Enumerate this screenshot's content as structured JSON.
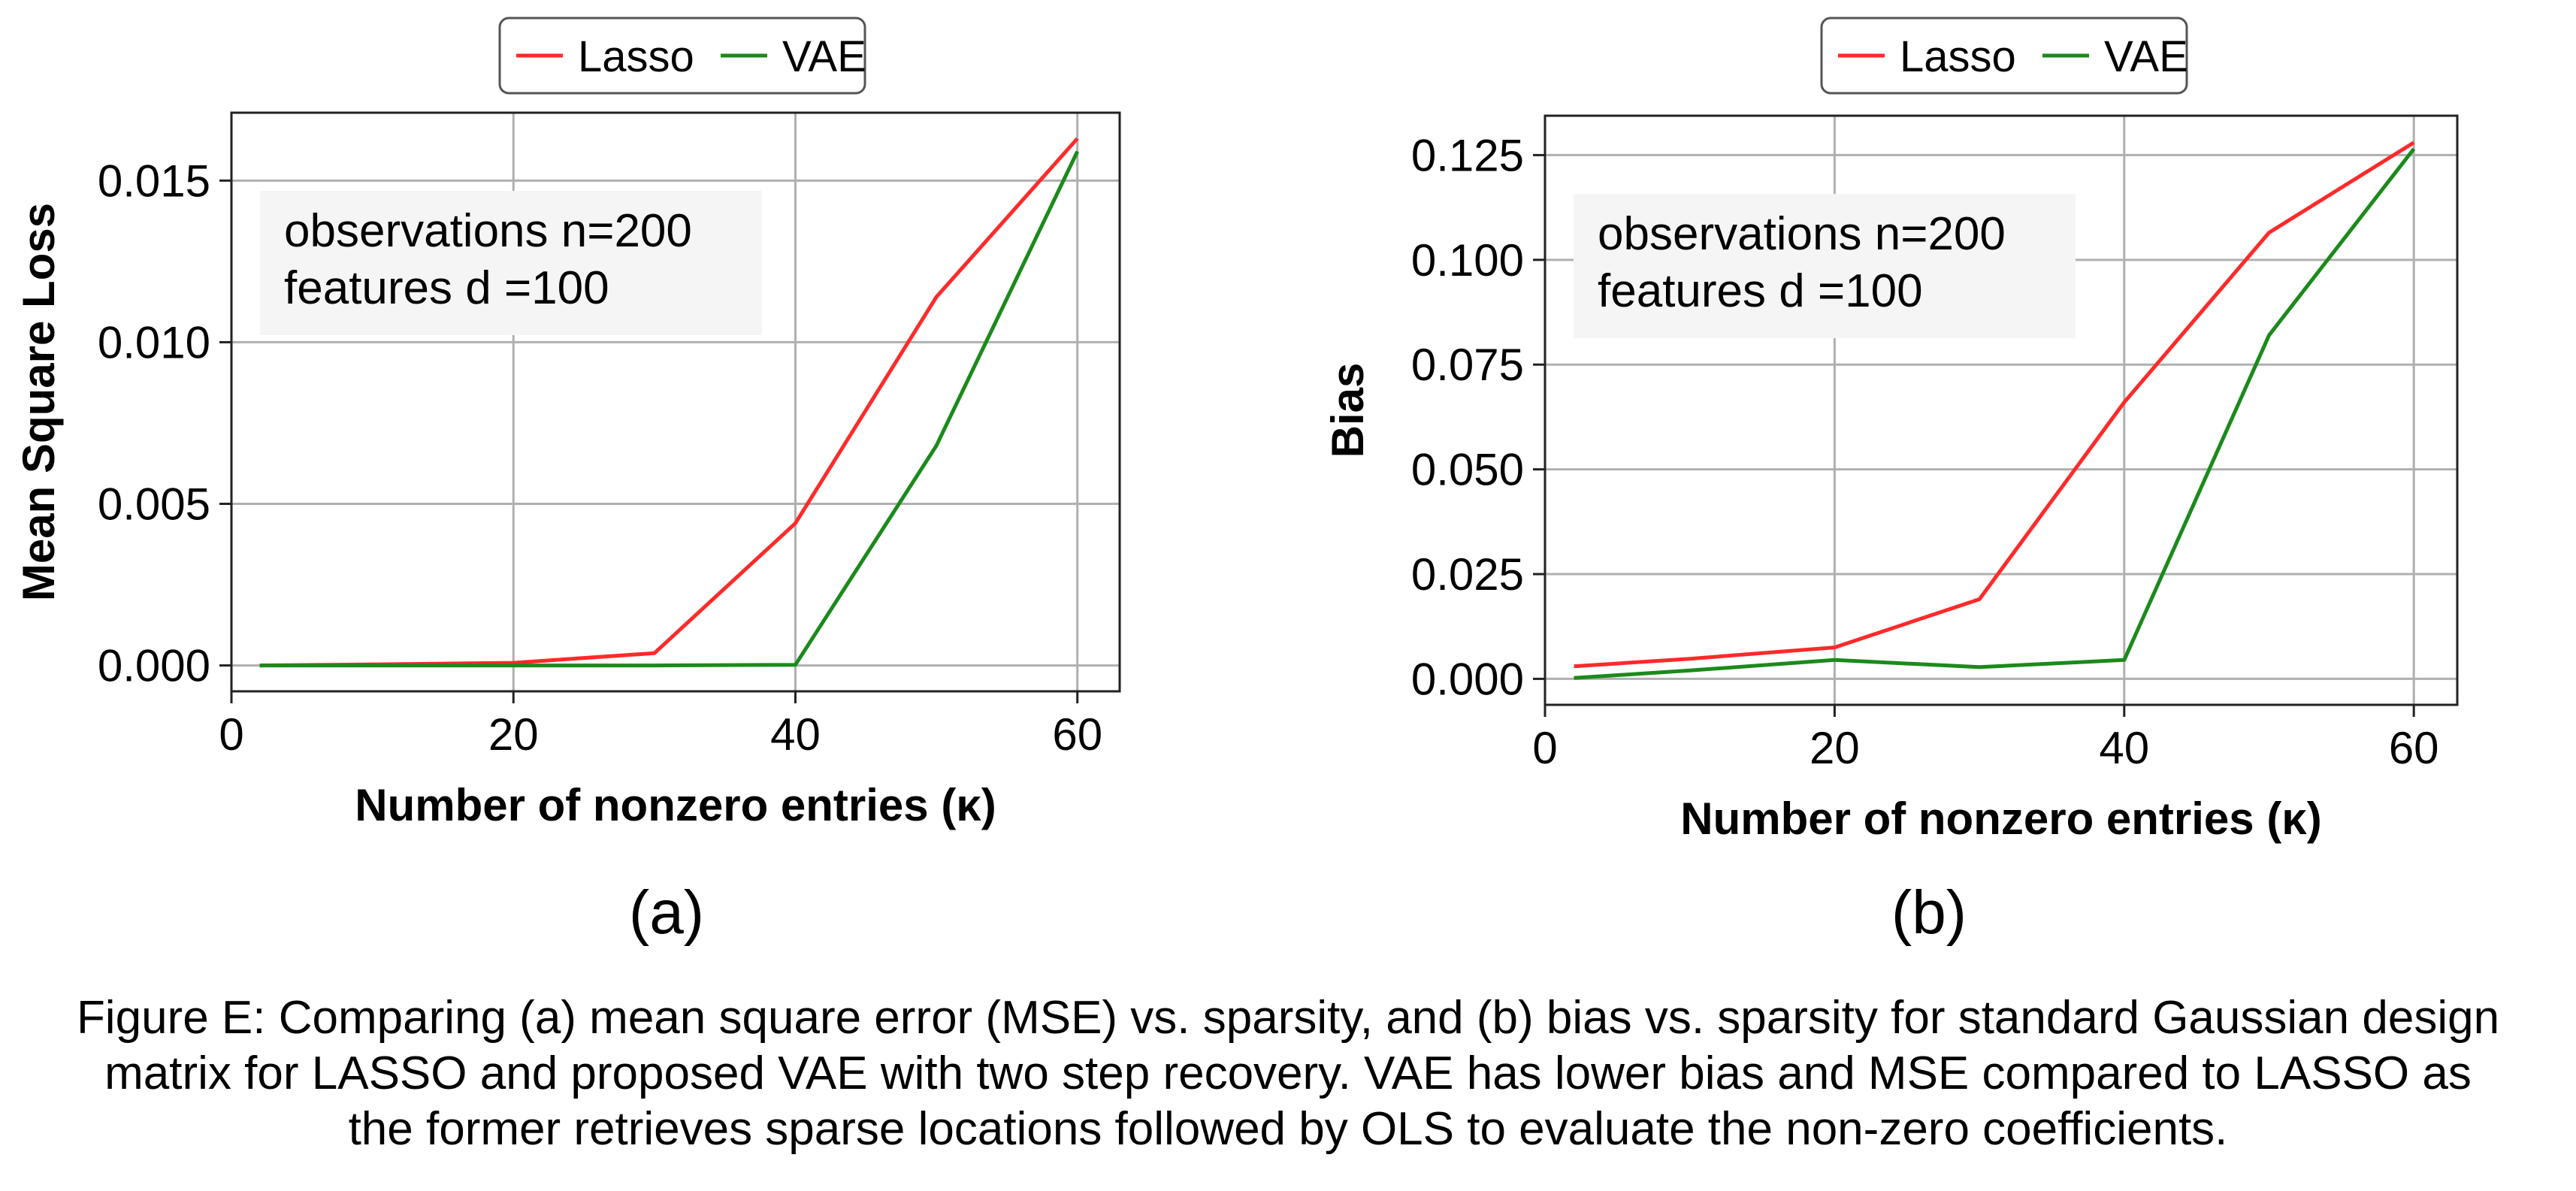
{
  "colors": {
    "lasso": "#ff2a2a",
    "vae": "#1b8a1b",
    "grid": "#b0b0b0",
    "annotation_bg": "#f5f5f5"
  },
  "figure": {
    "subplot_labels": [
      "(a)",
      "(b)"
    ],
    "caption_lines": [
      "Figure E: Comparing (a) mean square error (MSE) vs. sparsity, and (b) bias vs. sparsity for standard Gaussian design",
      "matrix for LASSO and proposed VAE with two step recovery. VAE has lower bias and MSE compared to LASSO as",
      "the former retrieves sparse locations followed by OLS to evaluate the non-zero coefficients."
    ]
  },
  "chart_data": [
    {
      "type": "line",
      "xlabel": "Number of nonzero entries (κ)",
      "ylabel": "Mean Square Loss",
      "xlim": [
        0,
        63
      ],
      "ylim": [
        -0.0008,
        0.0171
      ],
      "xticks": [
        0,
        20,
        40,
        60
      ],
      "yticks": [
        0.0,
        0.005,
        0.01,
        0.015
      ],
      "ytick_labels": [
        "0.000",
        "0.005",
        "0.010",
        "0.015"
      ],
      "grid": true,
      "legend_position": "top-center",
      "annotation": [
        "observations n=200",
        "features d =100"
      ],
      "x": [
        2,
        10,
        20,
        30,
        40,
        50,
        60
      ],
      "series": [
        {
          "name": "Lasso",
          "color": "#ff2a2a",
          "values": [
            0.0,
            3e-05,
            8e-05,
            0.00038,
            0.0044,
            0.0114,
            0.0163
          ]
        },
        {
          "name": "VAE",
          "color": "#1b8a1b",
          "values": [
            0.0,
            0.0,
            0.0,
            0.0,
            2e-05,
            0.0068,
            0.0159
          ]
        }
      ]
    },
    {
      "type": "line",
      "xlabel": "Number of nonzero entries (κ)",
      "ylabel": "Bias",
      "xlim": [
        0,
        63
      ],
      "ylim": [
        -0.0062,
        0.1344
      ],
      "xticks": [
        0,
        20,
        40,
        60
      ],
      "yticks": [
        0.0,
        0.025,
        0.05,
        0.075,
        0.1,
        0.125
      ],
      "ytick_labels": [
        "0.000",
        "0.025",
        "0.050",
        "0.075",
        "0.100",
        "0.125"
      ],
      "grid": true,
      "legend_position": "top-center",
      "annotation": [
        "observations n=200",
        "features d =100"
      ],
      "x": [
        2,
        10,
        20,
        30,
        40,
        50,
        60
      ],
      "series": [
        {
          "name": "Lasso",
          "color": "#ff2a2a",
          "values": [
            0.003,
            0.0048,
            0.0075,
            0.019,
            0.066,
            0.1065,
            0.128
          ]
        },
        {
          "name": "VAE",
          "color": "#1b8a1b",
          "values": [
            0.0002,
            0.002,
            0.0045,
            0.0028,
            0.0045,
            0.082,
            0.1265
          ]
        }
      ]
    }
  ]
}
